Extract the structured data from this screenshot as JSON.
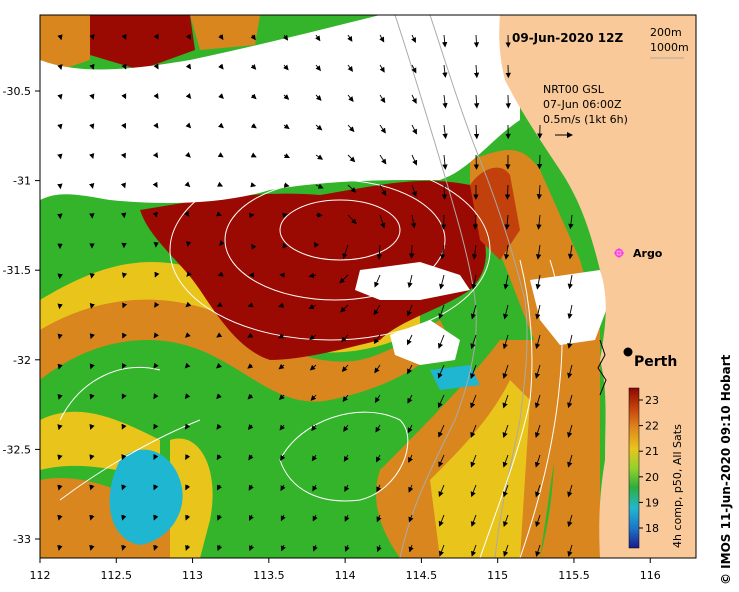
{
  "header": {
    "date_label": "09-Jun-2020 12Z",
    "iso_labels": [
      "200m",
      "1000m"
    ]
  },
  "current_legend": {
    "line1": "NRT00 GSL",
    "line2": "07-Jun 06:00Z",
    "line3": "0.5m/s (1kt 6h)"
  },
  "places": {
    "argo": "Argo",
    "perth": "Perth"
  },
  "axes": {
    "x_ticks": [
      "112",
      "112.5",
      "113",
      "113.5",
      "114",
      "114.5",
      "115",
      "115.5",
      "116"
    ],
    "y_ticks": [
      "-30.5",
      "-31",
      "-31.5",
      "-32",
      "-32.5",
      "-33"
    ]
  },
  "colorbar": {
    "ticks": [
      "23",
      "22",
      "21",
      "20",
      "19",
      "18"
    ],
    "caption": "4h comp, p50, All Sats"
  },
  "credit": "© IMOS 11-Jun-2020 09:10 Hobart",
  "colors": {
    "land": "#f9c99a",
    "cloud": "#ffffff",
    "sst_warm": "#9b0a02",
    "sst_orange": "#d9861e",
    "sst_yellow": "#e9c51c",
    "sst_green": "#33b42b",
    "sst_cyan": "#1fb6d2",
    "current_arrow": "#000000",
    "isobath": "#aaaaaa",
    "argo_marker": "#ff33ff"
  }
}
